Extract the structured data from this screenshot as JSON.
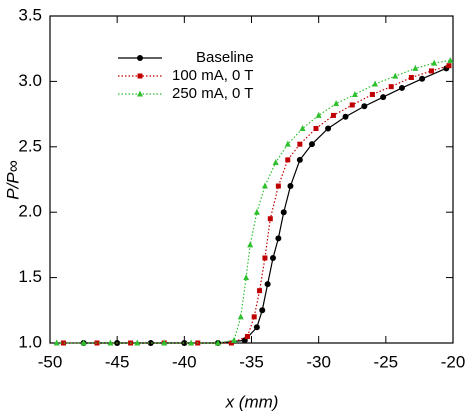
{
  "chart_data": {
    "type": "line",
    "xlabel": "x (mm)",
    "ylabel": "P/P∞",
    "xlim": [
      -50,
      -20
    ],
    "xticks": [
      -50,
      -45,
      -40,
      -35,
      -30,
      -25,
      -20
    ],
    "ylim": [
      1.0,
      3.5
    ],
    "yticks": [
      {
        "value": 1.0,
        "label": "1.0"
      },
      1.5,
      {
        "value": 2.0,
        "label": "2.0"
      },
      2.5,
      {
        "value": 3.0,
        "label": "3.0"
      },
      3.5
    ],
    "series": [
      {
        "name": "Baseline",
        "color": "#000000",
        "marker": "circle",
        "dash": "solid",
        "x": [
          -47.5,
          -45,
          -42.5,
          -40,
          -37.5,
          -35.5,
          -34.6,
          -34.2,
          -33.8,
          -33.4,
          -33.0,
          -32.6,
          -32.1,
          -31.4,
          -30.5,
          -29.3,
          -28.0,
          -26.6,
          -25.2,
          -23.8,
          -22.3,
          -20.5
        ],
        "values": [
          1.0,
          1.0,
          1.0,
          1.0,
          1.0,
          1.02,
          1.12,
          1.25,
          1.45,
          1.65,
          1.8,
          2.0,
          2.2,
          2.4,
          2.52,
          2.64,
          2.73,
          2.81,
          2.88,
          2.95,
          3.02,
          3.1
        ]
      },
      {
        "name": "100 mA, 0 T",
        "color": "#c00000",
        "marker": "square",
        "dash": "dotted",
        "x": [
          -49,
          -46.5,
          -44,
          -41.5,
          -39,
          -36.5,
          -35.3,
          -34.8,
          -34.4,
          -34.0,
          -33.6,
          -33.0,
          -32.3,
          -31.4,
          -30.2,
          -28.9,
          -27.5,
          -26.0,
          -24.6,
          -23.1,
          -21.6,
          -20.3
        ],
        "values": [
          1.0,
          1.0,
          1.0,
          1.0,
          1.0,
          1.0,
          1.05,
          1.2,
          1.4,
          1.65,
          1.95,
          2.2,
          2.4,
          2.52,
          2.64,
          2.74,
          2.82,
          2.9,
          2.96,
          3.03,
          3.08,
          3.12
        ]
      },
      {
        "name": "250 mA, 0 T",
        "color": "#2fbf2f",
        "marker": "triangle",
        "dash": "dotted",
        "x": [
          -49.5,
          -47.5,
          -45.5,
          -43.5,
          -41.5,
          -39.5,
          -37.5,
          -36.3,
          -35.8,
          -35.4,
          -35.1,
          -34.6,
          -34.0,
          -33.2,
          -32.3,
          -31.2,
          -30.0,
          -28.7,
          -27.3,
          -25.8,
          -24.3,
          -22.8,
          -21.4,
          -20.2
        ],
        "values": [
          1.0,
          1.0,
          1.0,
          1.0,
          1.0,
          1.0,
          1.0,
          1.02,
          1.2,
          1.5,
          1.75,
          2.0,
          2.2,
          2.38,
          2.52,
          2.64,
          2.74,
          2.83,
          2.9,
          2.98,
          3.04,
          3.1,
          3.14,
          3.16
        ]
      }
    ]
  }
}
